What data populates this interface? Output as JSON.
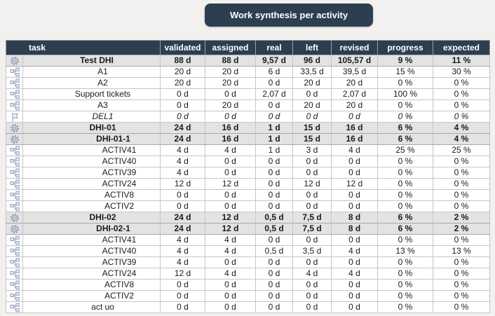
{
  "title": "Work synthesis per activity",
  "accent_colors": {
    "dark_header": "#2d3e50",
    "summary_row_bg": "#e3e3e3",
    "icon_blue": "#8fa0bd"
  },
  "table": {
    "columns": [
      "task",
      "validated",
      "assigned",
      "real",
      "left",
      "revised",
      "progress",
      "expected"
    ],
    "rows": [
      {
        "task": "Test DHI",
        "icon": "gear",
        "indent": 0,
        "style": "summary",
        "validated": "88 d",
        "assigned": "88 d",
        "real": "9,57 d",
        "left": "96 d",
        "revised": "105,57 d",
        "progress": "9 %",
        "expected": "11 %"
      },
      {
        "task": "A1",
        "icon": "activity",
        "indent": 1,
        "style": "normal",
        "validated": "20 d",
        "assigned": "20 d",
        "real": "6 d",
        "left": "33,5 d",
        "revised": "39,5 d",
        "progress": "15 %",
        "expected": "30 %"
      },
      {
        "task": "A2",
        "icon": "activity",
        "indent": 1,
        "style": "normal",
        "validated": "20 d",
        "assigned": "20 d",
        "real": "0 d",
        "left": "20 d",
        "revised": "20 d",
        "progress": "0 %",
        "expected": "0 %"
      },
      {
        "task": "Support tickets",
        "icon": "activity",
        "indent": 1,
        "style": "normal",
        "validated": "0 d",
        "assigned": "0 d",
        "real": "2,07 d",
        "left": "0 d",
        "revised": "2,07 d",
        "progress": "100 %",
        "expected": "0 %"
      },
      {
        "task": "A3",
        "icon": "activity",
        "indent": 1,
        "style": "normal",
        "validated": "0 d",
        "assigned": "20 d",
        "real": "0 d",
        "left": "20 d",
        "revised": "20 d",
        "progress": "0 %",
        "expected": "0 %"
      },
      {
        "task": "DEL1",
        "icon": "flag",
        "indent": 1,
        "style": "milestone",
        "validated": "0 d",
        "assigned": "0 d",
        "real": "0 d",
        "left": "0 d",
        "revised": "0 d",
        "progress": "0 %",
        "expected": "0 %"
      },
      {
        "task": "DHI-01",
        "icon": "gear",
        "indent": 1,
        "style": "summary",
        "validated": "24 d",
        "assigned": "16 d",
        "real": "1 d",
        "left": "15 d",
        "revised": "16 d",
        "progress": "6 %",
        "expected": "4 %"
      },
      {
        "task": "DHI-01-1",
        "icon": "gear",
        "indent": 2,
        "style": "summary",
        "validated": "24 d",
        "assigned": "16 d",
        "real": "1 d",
        "left": "15 d",
        "revised": "16 d",
        "progress": "6 %",
        "expected": "4 %"
      },
      {
        "task": "ACTIV41",
        "icon": "activity",
        "indent": 3,
        "style": "normal",
        "validated": "4 d",
        "assigned": "4 d",
        "real": "1 d",
        "left": "3 d",
        "revised": "4 d",
        "progress": "25 %",
        "expected": "25 %"
      },
      {
        "task": "ACTIV40",
        "icon": "activity",
        "indent": 3,
        "style": "normal",
        "validated": "4 d",
        "assigned": "0 d",
        "real": "0 d",
        "left": "0 d",
        "revised": "0 d",
        "progress": "0 %",
        "expected": "0 %"
      },
      {
        "task": "ACTIV39",
        "icon": "activity",
        "indent": 3,
        "style": "normal",
        "validated": "4 d",
        "assigned": "0 d",
        "real": "0 d",
        "left": "0 d",
        "revised": "0 d",
        "progress": "0 %",
        "expected": "0 %"
      },
      {
        "task": "ACTIV24",
        "icon": "activity",
        "indent": 3,
        "style": "normal",
        "validated": "12 d",
        "assigned": "12 d",
        "real": "0 d",
        "left": "12 d",
        "revised": "12 d",
        "progress": "0 %",
        "expected": "0 %"
      },
      {
        "task": "ACTIV8",
        "icon": "activity",
        "indent": 3,
        "style": "normal",
        "validated": "0 d",
        "assigned": "0 d",
        "real": "0 d",
        "left": "0 d",
        "revised": "0 d",
        "progress": "0 %",
        "expected": "0 %"
      },
      {
        "task": "ACTIV2",
        "icon": "activity",
        "indent": 3,
        "style": "normal",
        "validated": "0 d",
        "assigned": "0 d",
        "real": "0 d",
        "left": "0 d",
        "revised": "0 d",
        "progress": "0 %",
        "expected": "0 %"
      },
      {
        "task": "DHI-02",
        "icon": "gear",
        "indent": 1,
        "style": "summary",
        "validated": "24 d",
        "assigned": "12 d",
        "real": "0,5 d",
        "left": "7,5 d",
        "revised": "8 d",
        "progress": "6 %",
        "expected": "2 %"
      },
      {
        "task": "DHI-02-1",
        "icon": "gear",
        "indent": 2,
        "style": "summary",
        "validated": "24 d",
        "assigned": "12 d",
        "real": "0,5 d",
        "left": "7,5 d",
        "revised": "8 d",
        "progress": "6 %",
        "expected": "2 %"
      },
      {
        "task": "ACTIV41",
        "icon": "activity",
        "indent": 3,
        "style": "normal",
        "validated": "4 d",
        "assigned": "4 d",
        "real": "0 d",
        "left": "0 d",
        "revised": "0 d",
        "progress": "0 %",
        "expected": "0 %"
      },
      {
        "task": "ACTIV40",
        "icon": "activity",
        "indent": 3,
        "style": "normal",
        "validated": "4 d",
        "assigned": "4 d",
        "real": "0,5 d",
        "left": "3,5 d",
        "revised": "4 d",
        "progress": "13 %",
        "expected": "13 %"
      },
      {
        "task": "ACTIV39",
        "icon": "activity",
        "indent": 3,
        "style": "normal",
        "validated": "4 d",
        "assigned": "0 d",
        "real": "0 d",
        "left": "0 d",
        "revised": "0 d",
        "progress": "0 %",
        "expected": "0 %"
      },
      {
        "task": "ACTIV24",
        "icon": "activity",
        "indent": 3,
        "style": "normal",
        "validated": "12 d",
        "assigned": "4 d",
        "real": "0 d",
        "left": "4 d",
        "revised": "4 d",
        "progress": "0 %",
        "expected": "0 %"
      },
      {
        "task": "ACTIV8",
        "icon": "activity",
        "indent": 3,
        "style": "normal",
        "validated": "0 d",
        "assigned": "0 d",
        "real": "0 d",
        "left": "0 d",
        "revised": "0 d",
        "progress": "0 %",
        "expected": "0 %"
      },
      {
        "task": "ACTIV2",
        "icon": "activity",
        "indent": 3,
        "style": "normal",
        "validated": "0 d",
        "assigned": "0 d",
        "real": "0 d",
        "left": "0 d",
        "revised": "0 d",
        "progress": "0 %",
        "expected": "0 %"
      },
      {
        "task": "act uo",
        "icon": "activity",
        "indent": 1,
        "style": "normal",
        "validated": "0 d",
        "assigned": "0 d",
        "real": "0 d",
        "left": "0 d",
        "revised": "0 d",
        "progress": "0 %",
        "expected": "0 %"
      }
    ]
  }
}
